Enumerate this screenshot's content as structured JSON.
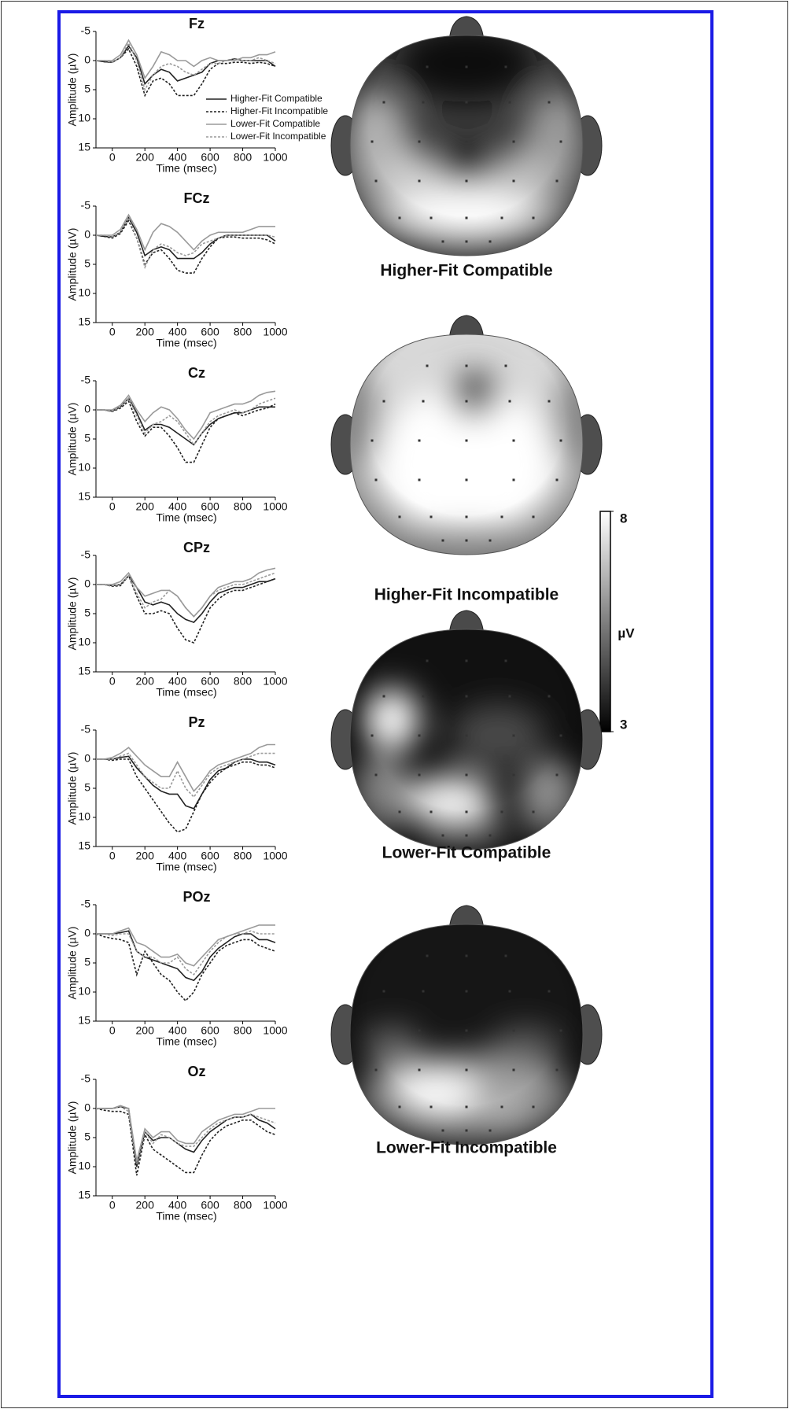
{
  "chart_data": [
    {
      "type": "line",
      "title": "Fz",
      "xlabel": "Time (msec)",
      "ylabel": "Amplitude (µV)",
      "legend": "right",
      "xlim": [
        -100,
        1000
      ],
      "xticks": [
        0,
        200,
        400,
        600,
        800,
        1000
      ],
      "ylim": [
        -5,
        15
      ],
      "y_inverted": true,
      "yticks": [
        -5,
        0,
        5,
        10,
        15
      ],
      "x": [
        -100,
        -50,
        0,
        50,
        100,
        150,
        200,
        250,
        300,
        350,
        400,
        450,
        500,
        550,
        600,
        650,
        700,
        750,
        800,
        850,
        900,
        950,
        1000
      ],
      "series": [
        {
          "name": "Higher-Fit Compatible",
          "color": "#222222",
          "dash": "solid",
          "values": [
            0,
            0.2,
            0.3,
            -0.5,
            -2.5,
            -0.5,
            4,
            2.5,
            1.5,
            2,
            3.5,
            3,
            2.5,
            2,
            0.5,
            0,
            0,
            -0.3,
            0,
            0,
            0,
            0,
            1
          ]
        },
        {
          "name": "Higher-Fit Incompatible",
          "color": "#222222",
          "dash": "dashed",
          "values": [
            0,
            0.2,
            0.3,
            -0.5,
            -2,
            1,
            6,
            3.5,
            3,
            4,
            6,
            6,
            6,
            4,
            1.5,
            0.5,
            0.5,
            0.3,
            0.3,
            0.5,
            0.3,
            0.5,
            1
          ]
        },
        {
          "name": "Lower-Fit Compatible",
          "color": "#9a9a9a",
          "dash": "solid",
          "values": [
            0,
            0,
            0,
            -1,
            -3.5,
            -1,
            3,
            1,
            -1.5,
            -1,
            0,
            0,
            1,
            0,
            -0.5,
            0,
            0,
            0,
            -0.5,
            -0.5,
            -1,
            -1,
            -1.5
          ]
        },
        {
          "name": "Lower-Fit Incompatible",
          "color": "#9a9a9a",
          "dash": "dashed",
          "values": [
            0,
            0,
            0.3,
            -0.5,
            -3,
            0,
            5,
            2.5,
            1,
            0.5,
            1,
            2,
            2.5,
            1.5,
            0.5,
            0.5,
            0,
            -0.2,
            0,
            0,
            -0.5,
            0,
            0.5
          ]
        }
      ]
    },
    {
      "type": "line",
      "title": "FCz",
      "xlabel": "Time (msec)",
      "ylabel": "Amplitude (µV)",
      "xlim": [
        -100,
        1000
      ],
      "xticks": [
        0,
        200,
        400,
        600,
        800,
        1000
      ],
      "ylim": [
        -5,
        15
      ],
      "y_inverted": true,
      "yticks": [
        -5,
        0,
        5,
        10,
        15
      ],
      "x": [
        -100,
        -50,
        0,
        50,
        100,
        150,
        200,
        250,
        300,
        350,
        400,
        450,
        500,
        550,
        600,
        650,
        700,
        750,
        800,
        850,
        900,
        950,
        1000
      ],
      "series": [
        {
          "color": "#222222",
          "dash": "solid",
          "values": [
            0,
            0.2,
            0.3,
            -0.5,
            -3,
            -0.5,
            3.5,
            2.5,
            2,
            2.5,
            4,
            4,
            4,
            3,
            1.5,
            0.5,
            0,
            0,
            0,
            0,
            0,
            0,
            1
          ]
        },
        {
          "color": "#222222",
          "dash": "dashed",
          "values": [
            0,
            0.2,
            0.5,
            -0.3,
            -2.5,
            0.5,
            5,
            3,
            2.5,
            4,
            6,
            6.5,
            6.5,
            4,
            2,
            0.5,
            0.3,
            0.3,
            0.5,
            0.5,
            0.5,
            0.8,
            1.5
          ]
        },
        {
          "color": "#9a9a9a",
          "dash": "solid",
          "values": [
            0,
            0,
            0,
            -1,
            -3.5,
            -1,
            2.5,
            -0.5,
            -2,
            -1.5,
            -0.5,
            1,
            2.5,
            1,
            0,
            -0.5,
            -0.5,
            -0.5,
            -0.5,
            -1,
            -1.5,
            -1.5,
            -1.5
          ]
        },
        {
          "color": "#9a9a9a",
          "dash": "dashed",
          "values": [
            0,
            0,
            0.3,
            -0.5,
            -3,
            0.5,
            5.5,
            2.5,
            1.5,
            2,
            3,
            3.5,
            3,
            1.5,
            1,
            0.5,
            0,
            0,
            0,
            0,
            0,
            0,
            0.3
          ]
        }
      ]
    },
    {
      "type": "line",
      "title": "Cz",
      "xlabel": "Time (msec)",
      "ylabel": "Amplitude (µV)",
      "xlim": [
        -100,
        1000
      ],
      "xticks": [
        0,
        200,
        400,
        600,
        800,
        1000
      ],
      "ylim": [
        -5,
        15
      ],
      "y_inverted": true,
      "yticks": [
        -5,
        0,
        5,
        10,
        15
      ],
      "x": [
        -100,
        -50,
        0,
        50,
        100,
        150,
        200,
        250,
        300,
        350,
        400,
        450,
        500,
        550,
        600,
        650,
        700,
        750,
        800,
        850,
        900,
        950,
        1000
      ],
      "series": [
        {
          "color": "#222222",
          "dash": "solid",
          "values": [
            0,
            0,
            0.2,
            -0.5,
            -2,
            0.5,
            3.5,
            2.5,
            2.5,
            3,
            4,
            5,
            6,
            4,
            2.5,
            1.5,
            1,
            0.5,
            0.5,
            0,
            -0.5,
            -0.5,
            -0.5
          ]
        },
        {
          "color": "#222222",
          "dash": "dashed",
          "values": [
            0,
            0,
            0.3,
            -0.3,
            -1.5,
            2,
            4.5,
            3,
            3,
            4.5,
            6.5,
            9,
            9,
            6,
            3,
            1.5,
            1,
            0.5,
            1,
            0.5,
            0,
            -0.3,
            -1
          ]
        },
        {
          "color": "#9a9a9a",
          "dash": "solid",
          "values": [
            0,
            0,
            0,
            -0.8,
            -2.5,
            0,
            2,
            0.5,
            -0.5,
            0,
            1.5,
            3.5,
            5,
            3,
            0.5,
            0,
            -0.5,
            -1,
            -1,
            -1.5,
            -2.5,
            -3,
            -3.2
          ]
        },
        {
          "color": "#9a9a9a",
          "dash": "dashed",
          "values": [
            0,
            0,
            0.2,
            -0.5,
            -2,
            1,
            4,
            2.5,
            2,
            1,
            2,
            4,
            6,
            4,
            2,
            1,
            0.5,
            0,
            0.5,
            0,
            -1,
            -1.5,
            -2
          ]
        }
      ]
    },
    {
      "type": "line",
      "title": "CPz",
      "xlabel": "Time (msec)",
      "ylabel": "Amplitude (µV)",
      "xlim": [
        -100,
        1000
      ],
      "xticks": [
        0,
        200,
        400,
        600,
        800,
        1000
      ],
      "ylim": [
        -5,
        15
      ],
      "y_inverted": true,
      "yticks": [
        -5,
        0,
        5,
        10,
        15
      ],
      "x": [
        -100,
        -50,
        0,
        50,
        100,
        150,
        200,
        250,
        300,
        350,
        400,
        450,
        500,
        550,
        600,
        650,
        700,
        750,
        800,
        850,
        900,
        950,
        1000
      ],
      "series": [
        {
          "color": "#222222",
          "dash": "solid",
          "values": [
            0,
            0,
            0.2,
            0,
            -1.5,
            0.5,
            3,
            3.5,
            3,
            3.5,
            5,
            6,
            6.5,
            5,
            3,
            1.5,
            1,
            0.5,
            0.5,
            0,
            -0.5,
            -0.5,
            -1
          ]
        },
        {
          "color": "#222222",
          "dash": "dashed",
          "values": [
            0,
            0,
            0.3,
            0.2,
            -1.5,
            2,
            5,
            5,
            4.5,
            5,
            7.5,
            9.5,
            10,
            7,
            4,
            2.5,
            1.5,
            1,
            1,
            0.5,
            0,
            -0.5,
            -1
          ]
        },
        {
          "color": "#9a9a9a",
          "dash": "solid",
          "values": [
            0,
            0,
            0,
            -0.5,
            -2,
            0.5,
            2,
            1.5,
            1,
            1,
            2,
            4,
            5.5,
            4,
            2,
            0.5,
            0,
            -0.5,
            -0.5,
            -1,
            -2,
            -2.5,
            -2.8
          ]
        },
        {
          "color": "#9a9a9a",
          "dash": "dashed",
          "values": [
            0,
            0,
            0.2,
            0,
            -1.5,
            1.5,
            4,
            3,
            2.5,
            1,
            2,
            4,
            5.5,
            4,
            2,
            1,
            0.5,
            0,
            0,
            -0.5,
            -1,
            -1.5,
            -2
          ]
        }
      ]
    },
    {
      "type": "line",
      "title": "Pz",
      "xlabel": "Time (msec)",
      "ylabel": "Amplitude (µV)",
      "xlim": [
        -100,
        1000
      ],
      "xticks": [
        0,
        200,
        400,
        600,
        800,
        1000
      ],
      "ylim": [
        -5,
        15
      ],
      "y_inverted": true,
      "yticks": [
        -5,
        0,
        5,
        10,
        15
      ],
      "x": [
        -100,
        -50,
        0,
        50,
        100,
        150,
        200,
        250,
        300,
        350,
        400,
        450,
        500,
        550,
        600,
        650,
        700,
        750,
        800,
        850,
        900,
        950,
        1000
      ],
      "series": [
        {
          "color": "#222222",
          "dash": "solid",
          "values": [
            0,
            0,
            0,
            -0.3,
            -0.5,
            1.5,
            3,
            4.5,
            5.5,
            6,
            6,
            8,
            8.5,
            6,
            3.5,
            2,
            1.5,
            0.5,
            0,
            0,
            0.5,
            0.5,
            1
          ]
        },
        {
          "color": "#222222",
          "dash": "dashed",
          "values": [
            0,
            0,
            0.2,
            0,
            0,
            3,
            5,
            7,
            9,
            11,
            12.5,
            12,
            9,
            6,
            4,
            2.5,
            1.5,
            1,
            0.5,
            0.5,
            1,
            1,
            1.5
          ]
        },
        {
          "color": "#9a9a9a",
          "dash": "solid",
          "values": [
            0,
            0,
            -0.3,
            -1,
            -2,
            -0.5,
            1,
            2,
            3,
            3,
            0.5,
            3,
            5.5,
            4,
            2,
            1,
            0.5,
            0,
            -0.5,
            -1,
            -2,
            -2.5,
            -2.5
          ]
        },
        {
          "color": "#9a9a9a",
          "dash": "dashed",
          "values": [
            0,
            0,
            0,
            -0.5,
            -1,
            1,
            3,
            4,
            5,
            5,
            2,
            5,
            6.5,
            4.5,
            2.5,
            1.5,
            1,
            0.5,
            0,
            -0.5,
            -1,
            -1,
            -1
          ]
        }
      ]
    },
    {
      "type": "line",
      "title": "POz",
      "xlabel": "Time (msec)",
      "ylabel": "Amplitude (µV)",
      "xlim": [
        -100,
        1000
      ],
      "xticks": [
        0,
        200,
        400,
        600,
        800,
        1000
      ],
      "ylim": [
        -5,
        15
      ],
      "y_inverted": true,
      "yticks": [
        -5,
        0,
        5,
        10,
        15
      ],
      "x": [
        -100,
        -50,
        0,
        50,
        100,
        150,
        200,
        250,
        300,
        350,
        400,
        450,
        500,
        550,
        600,
        650,
        700,
        750,
        800,
        850,
        900,
        950,
        1000
      ],
      "series": [
        {
          "color": "#222222",
          "dash": "solid",
          "values": [
            0,
            0,
            0,
            -0.2,
            -0.5,
            3,
            4,
            4.5,
            5,
            5.5,
            6,
            7.5,
            8,
            6.5,
            4,
            2.5,
            1.5,
            0.5,
            0,
            0,
            1,
            1,
            1.5
          ]
        },
        {
          "color": "#222222",
          "dash": "dashed",
          "values": [
            0,
            0.5,
            0.8,
            1,
            1.5,
            7,
            3,
            5,
            7,
            8,
            10,
            11.5,
            10,
            7,
            5,
            3,
            2,
            1.5,
            1,
            1,
            2,
            2.5,
            3
          ]
        },
        {
          "color": "#9a9a9a",
          "dash": "solid",
          "values": [
            0,
            0,
            0,
            -0.5,
            -1,
            1.5,
            2,
            3,
            4,
            4,
            3.5,
            5,
            5.5,
            4,
            2.5,
            1,
            0.5,
            0,
            -0.5,
            -1,
            -1.5,
            -1.5,
            -1.5
          ]
        },
        {
          "color": "#9a9a9a",
          "dash": "dashed",
          "values": [
            0,
            0,
            0.3,
            0,
            0,
            3,
            4,
            4,
            5,
            5,
            4,
            6,
            7,
            5,
            3,
            1.5,
            0.5,
            0,
            0,
            -0.5,
            0,
            0,
            0
          ]
        }
      ]
    },
    {
      "type": "line",
      "title": "Oz",
      "xlabel": "Time (msec)",
      "ylabel": "Amplitude (µV)",
      "xlim": [
        -100,
        1000
      ],
      "xticks": [
        0,
        200,
        400,
        600,
        800,
        1000
      ],
      "ylim": [
        -5,
        15
      ],
      "y_inverted": true,
      "yticks": [
        -5,
        0,
        5,
        10,
        15
      ],
      "x": [
        -100,
        -50,
        0,
        50,
        100,
        150,
        200,
        250,
        300,
        350,
        400,
        450,
        500,
        550,
        600,
        650,
        700,
        750,
        800,
        850,
        900,
        950,
        1000
      ],
      "series": [
        {
          "color": "#222222",
          "dash": "solid",
          "values": [
            0,
            0,
            0,
            -0.3,
            0,
            10,
            4,
            5.5,
            5,
            5,
            6,
            7,
            7.5,
            5.5,
            4,
            3,
            2,
            1.5,
            1.5,
            1,
            2,
            2.5,
            3.5
          ]
        },
        {
          "color": "#222222",
          "dash": "dashed",
          "values": [
            0,
            0.3,
            0.5,
            0.5,
            1,
            11.5,
            4.5,
            7,
            8,
            9,
            10,
            11,
            11,
            8,
            5.5,
            4,
            3,
            2.5,
            2,
            2,
            3,
            4,
            4.5
          ]
        },
        {
          "color": "#9a9a9a",
          "dash": "solid",
          "values": [
            0,
            0,
            0,
            -0.5,
            0,
            9,
            3.5,
            5,
            4,
            4,
            5.5,
            6,
            6,
            4,
            3,
            2,
            1.5,
            1,
            1,
            0.5,
            0,
            0,
            0
          ]
        },
        {
          "color": "#9a9a9a",
          "dash": "dashed",
          "values": [
            0,
            0,
            0,
            -0.3,
            0.5,
            9.5,
            4,
            6,
            4.5,
            5,
            6,
            6.5,
            6.5,
            5,
            3.5,
            2.5,
            2,
            1.5,
            1.5,
            1,
            1.5,
            2,
            2.5
          ]
        }
      ]
    }
  ],
  "topomaps": {
    "captions": [
      "Higher-Fit Compatible",
      "Higher-Fit Incompatible",
      "Lower-Fit Compatible",
      "Lower-Fit Incompatible"
    ],
    "colorbar": {
      "label": "µV",
      "lim": [
        3,
        8
      ],
      "ticks": [
        3,
        8
      ]
    }
  }
}
